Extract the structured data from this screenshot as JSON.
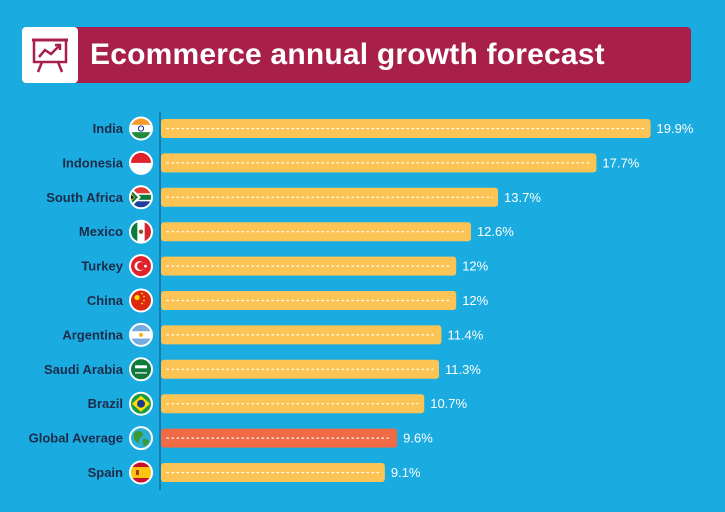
{
  "header": {
    "title": "Ecommerce annual growth forecast",
    "icon": "presentation-chart-icon"
  },
  "colors": {
    "background": "#1aace0",
    "header": "#a81f4a",
    "bar": "#fcc455",
    "highlight_bar": "#ef6a45",
    "label": "#1d2b4a",
    "value_label": "#ffffff"
  },
  "chart_data": {
    "type": "bar",
    "orientation": "horizontal",
    "title": "Ecommerce annual growth forecast",
    "categories": [
      "India",
      "Indonesia",
      "South Africa",
      "Mexico",
      "Turkey",
      "China",
      "Argentina",
      "Saudi Arabia",
      "Brazil",
      "Global Average",
      "Spain"
    ],
    "values": [
      19.9,
      17.7,
      13.7,
      12.6,
      12,
      12,
      11.4,
      11.3,
      10.7,
      9.6,
      9.1
    ],
    "value_labels": [
      "19.9%",
      "17.7%",
      "13.7%",
      "12.6%",
      "12%",
      "12%",
      "11.4%",
      "11.3%",
      "10.7%",
      "9.6%",
      "9.1%"
    ],
    "flags": [
      "india-flag-icon",
      "indonesia-flag-icon",
      "south-africa-flag-icon",
      "mexico-flag-icon",
      "turkey-flag-icon",
      "china-flag-icon",
      "argentina-flag-icon",
      "saudi-arabia-flag-icon",
      "brazil-flag-icon",
      "globe-icon",
      "spain-flag-icon"
    ],
    "highlight": "Global Average",
    "xlim": [
      0,
      20
    ],
    "xlabel": "",
    "ylabel": "",
    "grid": false
  }
}
